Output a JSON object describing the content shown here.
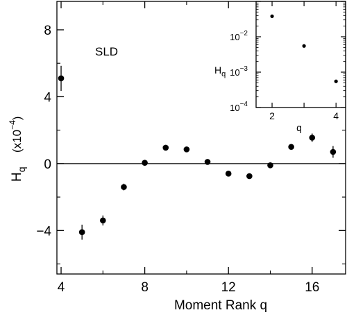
{
  "chart_data": [
    {
      "type": "scatter",
      "annotation": "SLD",
      "xlabel": "Moment Rank  q",
      "ylabel_main": "H",
      "ylabel_sub": "q",
      "ylabel_scale_prefix": "(x10",
      "ylabel_scale_exp": "−4",
      "ylabel_scale_suffix": ")",
      "xlim": [
        3.8,
        17.6
      ],
      "ylim": [
        -6.6,
        9.7
      ],
      "xticks": [
        4,
        8,
        12,
        16
      ],
      "yticks": [
        -4,
        0,
        4,
        8
      ],
      "ytick_labels": [
        "−4",
        "0",
        "4",
        "8"
      ],
      "zero_line": true,
      "grid": false,
      "series": [
        {
          "x": [
            4,
            5,
            6,
            7,
            8,
            9,
            10,
            11,
            12,
            13,
            14,
            15,
            16,
            17
          ],
          "y": [
            5.1,
            -4.1,
            -3.4,
            -1.4,
            0.05,
            0.95,
            0.85,
            0.1,
            -0.6,
            -0.75,
            -0.1,
            1.0,
            1.55,
            0.7
          ],
          "err": [
            0.75,
            0.45,
            0.3,
            0.2,
            0.1,
            0.12,
            0.12,
            0.1,
            0.1,
            0.1,
            0.12,
            0.12,
            0.25,
            0.35
          ]
        }
      ]
    },
    {
      "type": "scatter",
      "yscale": "log",
      "xlabel": "q",
      "ylabel_main": "H",
      "ylabel_sub": "q",
      "xlim": [
        1.5,
        4.3
      ],
      "ylim": [
        0.0001,
        0.1
      ],
      "xticks": [
        2,
        3,
        4
      ],
      "xtick_labels": [
        "2",
        "",
        "4"
      ],
      "yticks": [
        0.0001,
        0.001,
        0.01,
        0.1
      ],
      "ytick_mantissa": [
        "10",
        "10",
        "10",
        ""
      ],
      "ytick_exponents": [
        "−4",
        "−3",
        "−2",
        ""
      ],
      "series": [
        {
          "x": [
            2,
            3,
            4
          ],
          "y": [
            0.038,
            0.0055,
            0.00055
          ]
        }
      ]
    }
  ]
}
